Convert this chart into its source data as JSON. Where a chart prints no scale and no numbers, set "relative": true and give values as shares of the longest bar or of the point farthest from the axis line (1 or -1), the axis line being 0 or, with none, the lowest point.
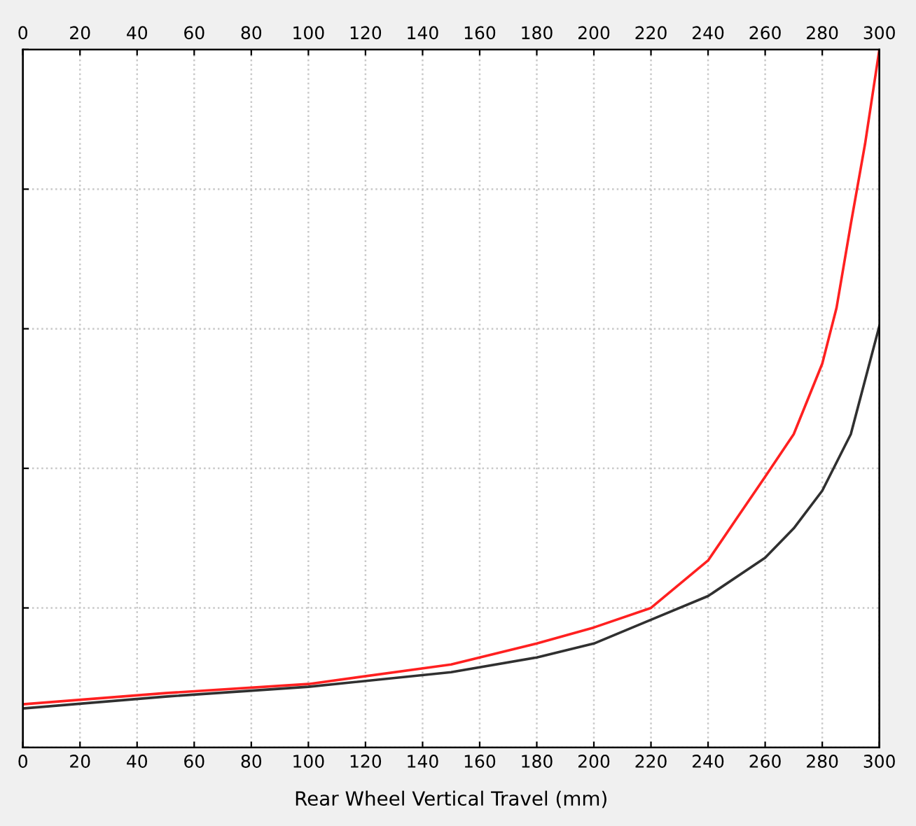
{
  "chart_data": {
    "type": "line",
    "xlabel": "Rear Wheel Vertical Travel (mm)",
    "relative": true,
    "xlim": [
      0,
      300
    ],
    "xticks": [
      0,
      20,
      40,
      60,
      80,
      100,
      120,
      140,
      160,
      180,
      200,
      220,
      240,
      260,
      280,
      300
    ],
    "x2lim": [
      0,
      300
    ],
    "x2ticks": [
      0,
      20,
      40,
      60,
      80,
      100,
      120,
      140,
      160,
      180,
      200,
      220,
      240,
      260,
      280,
      300
    ],
    "grid": true,
    "line_style": "solid",
    "series": [
      {
        "color": "#ff2020",
        "x": [
          0,
          50,
          100,
          150,
          180,
          200,
          220,
          240,
          250,
          260,
          270,
          280,
          285,
          290,
          295,
          300
        ],
        "values": [
          0.062,
          0.078,
          0.091,
          0.119,
          0.149,
          0.172,
          0.2,
          0.268,
          0.328,
          0.388,
          0.449,
          0.55,
          0.63,
          0.75,
          0.865,
          1.0
        ]
      },
      {
        "color": "#303030",
        "x": [
          0,
          50,
          100,
          150,
          180,
          200,
          220,
          240,
          260,
          270,
          280,
          290,
          300
        ],
        "values": [
          0.056,
          0.073,
          0.087,
          0.108,
          0.129,
          0.149,
          0.183,
          0.217,
          0.272,
          0.314,
          0.368,
          0.449,
          0.604
        ]
      }
    ]
  }
}
